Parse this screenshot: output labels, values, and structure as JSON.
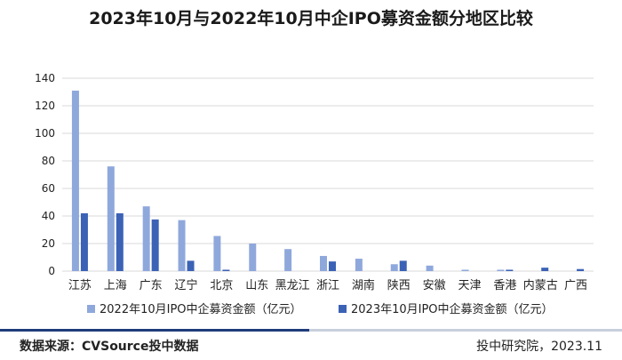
{
  "title": "2023年10月与2022年10月中企IPO募资金额分地区比较",
  "footer": {
    "source": "数据来源：CVSource投中数据",
    "credit": "投中研究院，2023.11"
  },
  "colors": {
    "series_2022": "#8fa8dc",
    "series_2023": "#3b62b5",
    "footer_dark": "#1f3c7a",
    "footer_light": "#c8cfdc",
    "grid": "#d9d9d9"
  },
  "chart_data": {
    "type": "bar",
    "categories": [
      "江苏",
      "上海",
      "广东",
      "辽宁",
      "北京",
      "山东",
      "黑龙江",
      "浙江",
      "湖南",
      "陕西",
      "安徽",
      "天津",
      "香港",
      "内蒙古",
      "广西"
    ],
    "series": [
      {
        "name": "2022年10月IPO中企募资金额（亿元）",
        "values": [
          131,
          76,
          47,
          37,
          25.5,
          20,
          16,
          11,
          9,
          5,
          4,
          1,
          1,
          0,
          0
        ]
      },
      {
        "name": "2023年10月IPO中企募资金额（亿元）",
        "values": [
          42,
          42,
          37.5,
          7.5,
          1,
          0,
          0,
          7,
          0,
          7.5,
          0,
          0,
          1,
          2.5,
          1.5
        ]
      }
    ],
    "ylim": [
      0,
      140
    ],
    "yticks": [
      0,
      20,
      40,
      60,
      80,
      100,
      120,
      140
    ],
    "grid": "horizontal",
    "legend_position": "bottom"
  }
}
